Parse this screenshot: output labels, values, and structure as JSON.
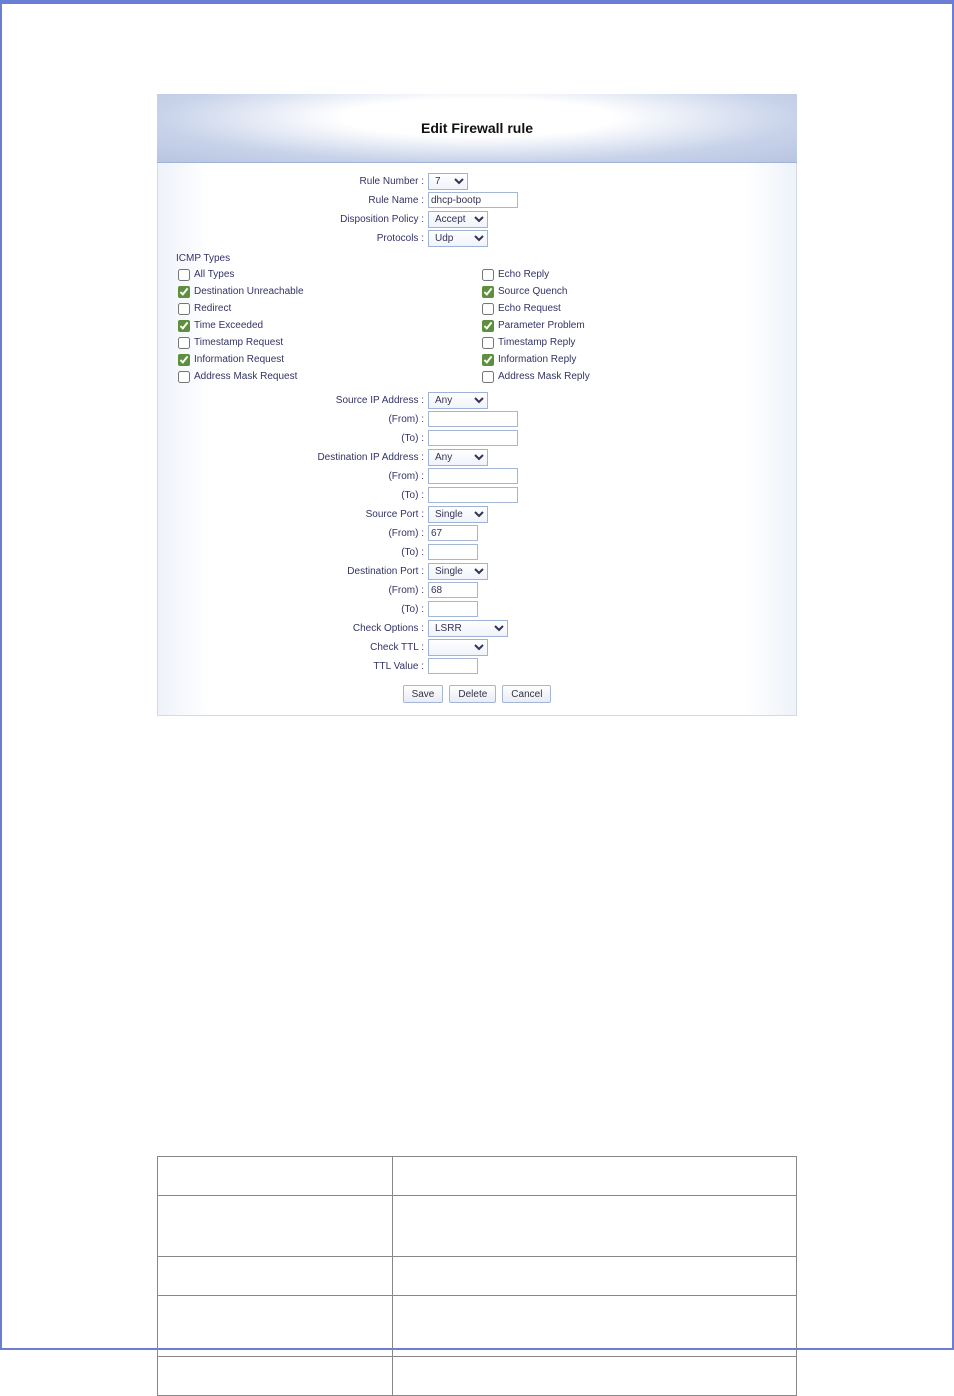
{
  "panel": {
    "title": "Edit Firewall rule"
  },
  "top": {
    "rule_number": {
      "label": "Rule Number :",
      "value": "7"
    },
    "rule_name": {
      "label": "Rule Name :",
      "value": "dhcp-bootp"
    },
    "disposition": {
      "label": "Disposition Policy :",
      "value": "Accept"
    },
    "protocols": {
      "label": "Protocols :",
      "value": "Udp"
    }
  },
  "icmp": {
    "section_label": "ICMP Types",
    "left": [
      {
        "label": "All Types",
        "checked": false
      },
      {
        "label": "Destination Unreachable",
        "checked": true
      },
      {
        "label": "Redirect",
        "checked": false
      },
      {
        "label": "Time Exceeded",
        "checked": true
      },
      {
        "label": "Timestamp Request",
        "checked": false
      },
      {
        "label": "Information Request",
        "checked": true
      },
      {
        "label": "Address Mask Request",
        "checked": false
      }
    ],
    "right": [
      {
        "label": "Echo Reply",
        "checked": false
      },
      {
        "label": "Source Quench",
        "checked": true
      },
      {
        "label": "Echo Request",
        "checked": false
      },
      {
        "label": "Parameter Problem",
        "checked": true
      },
      {
        "label": "Timestamp Reply",
        "checked": false
      },
      {
        "label": "Information Reply",
        "checked": true
      },
      {
        "label": "Address Mask Reply",
        "checked": false
      }
    ]
  },
  "addr": {
    "source_ip": {
      "label": "Source IP Address :",
      "value": "Any"
    },
    "src_from": {
      "label": "(From) :",
      "value": ""
    },
    "src_to": {
      "label": "(To) :",
      "value": ""
    },
    "dest_ip": {
      "label": "Destination IP Address :",
      "value": "Any"
    },
    "dst_from": {
      "label": "(From) :",
      "value": ""
    },
    "dst_to": {
      "label": "(To) :",
      "value": ""
    },
    "source_port": {
      "label": "Source Port :",
      "value": "Single"
    },
    "sp_from": {
      "label": "(From) :",
      "value": "67"
    },
    "sp_to": {
      "label": "(To) :",
      "value": ""
    },
    "dest_port": {
      "label": "Destination Port :",
      "value": "Single"
    },
    "dp_from": {
      "label": "(From) :",
      "value": "68"
    },
    "dp_to": {
      "label": "(To) :",
      "value": ""
    },
    "check_opts": {
      "label": "Check Options :",
      "value": "LSRR"
    },
    "check_ttl": {
      "label": "Check TTL :",
      "value": ""
    },
    "ttl_value": {
      "label": "TTL Value :",
      "value": ""
    }
  },
  "buttons": {
    "save": "Save",
    "delete": "Delete",
    "cancel": "Cancel"
  },
  "bottom_rows": [
    {
      "c1": "",
      "c2": "",
      "h": "sm"
    },
    {
      "c1": "",
      "c2": "",
      "h": "md"
    },
    {
      "c1": "",
      "c2": "",
      "h": "sm"
    },
    {
      "c1": "",
      "c2": "",
      "h": "md"
    },
    {
      "c1": "",
      "c2": "",
      "h": "sm"
    }
  ]
}
